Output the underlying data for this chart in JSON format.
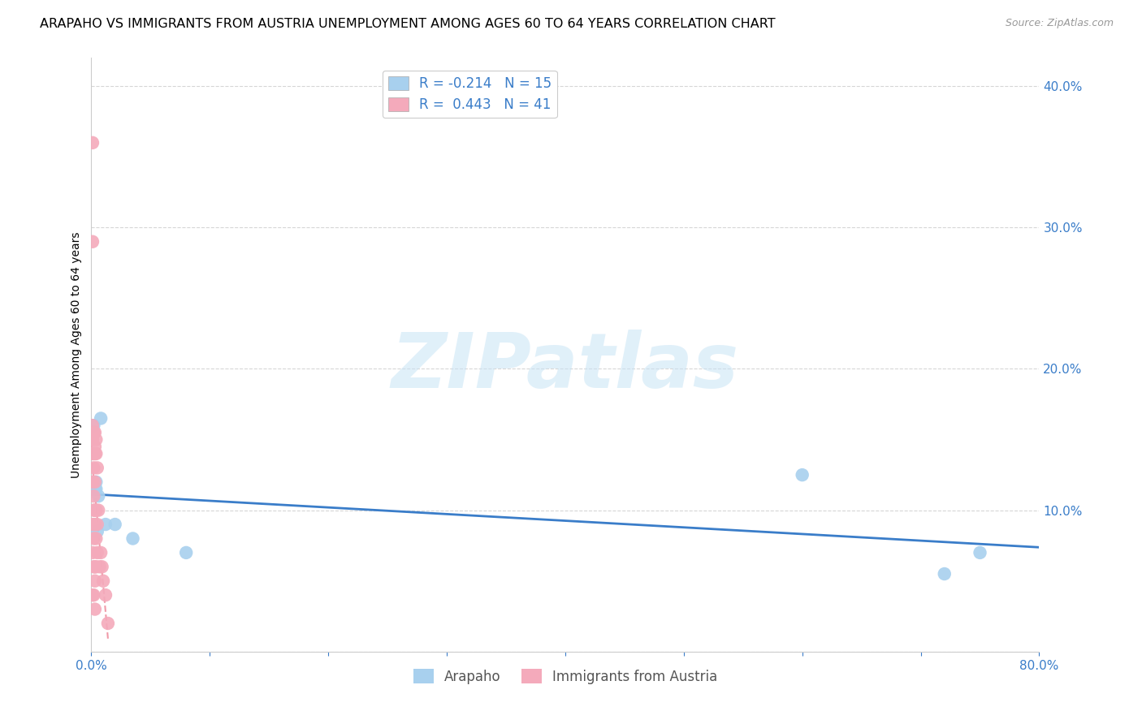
{
  "title": "ARAPAHO VS IMMIGRANTS FROM AUSTRIA UNEMPLOYMENT AMONG AGES 60 TO 64 YEARS CORRELATION CHART",
  "source": "Source: ZipAtlas.com",
  "ylabel": "Unemployment Among Ages 60 to 64 years",
  "xlim": [
    0,
    0.8
  ],
  "ylim": [
    0,
    0.42
  ],
  "arapaho_color": "#A8D0EE",
  "austria_color": "#F4AABB",
  "arapaho_line_color": "#3A7DC9",
  "austria_line_color": "#E8647A",
  "watermark_text": "ZIPatlas",
  "watermark_color": "#C8E4F5",
  "arapaho_R": -0.214,
  "arapaho_N": 15,
  "austria_R": 0.443,
  "austria_N": 41,
  "arapaho_x": [
    0.001,
    0.002,
    0.003,
    0.004,
    0.004,
    0.005,
    0.006,
    0.008,
    0.012,
    0.02,
    0.035,
    0.08,
    0.6,
    0.72,
    0.75
  ],
  "arapaho_y": [
    0.115,
    0.16,
    0.115,
    0.12,
    0.115,
    0.085,
    0.11,
    0.165,
    0.09,
    0.09,
    0.08,
    0.07,
    0.125,
    0.055,
    0.07
  ],
  "austria_x": [
    0.001,
    0.001,
    0.001,
    0.001,
    0.001,
    0.001,
    0.001,
    0.001,
    0.001,
    0.002,
    0.002,
    0.002,
    0.002,
    0.002,
    0.002,
    0.002,
    0.002,
    0.003,
    0.003,
    0.003,
    0.003,
    0.003,
    0.003,
    0.003,
    0.003,
    0.003,
    0.004,
    0.004,
    0.004,
    0.004,
    0.004,
    0.005,
    0.005,
    0.005,
    0.006,
    0.007,
    0.008,
    0.009,
    0.01,
    0.012,
    0.014
  ],
  "austria_y": [
    0.36,
    0.29,
    0.16,
    0.15,
    0.14,
    0.12,
    0.09,
    0.07,
    0.04,
    0.155,
    0.14,
    0.13,
    0.11,
    0.1,
    0.08,
    0.06,
    0.04,
    0.155,
    0.145,
    0.14,
    0.12,
    0.1,
    0.09,
    0.06,
    0.05,
    0.03,
    0.15,
    0.14,
    0.1,
    0.08,
    0.06,
    0.13,
    0.09,
    0.07,
    0.1,
    0.06,
    0.07,
    0.06,
    0.05,
    0.04,
    0.02
  ],
  "background_color": "#FFFFFF",
  "grid_color": "#CCCCCC",
  "axis_color": "#3A7DC9",
  "title_fontsize": 11.5,
  "label_fontsize": 10,
  "tick_fontsize": 11,
  "legend_fontsize": 12
}
